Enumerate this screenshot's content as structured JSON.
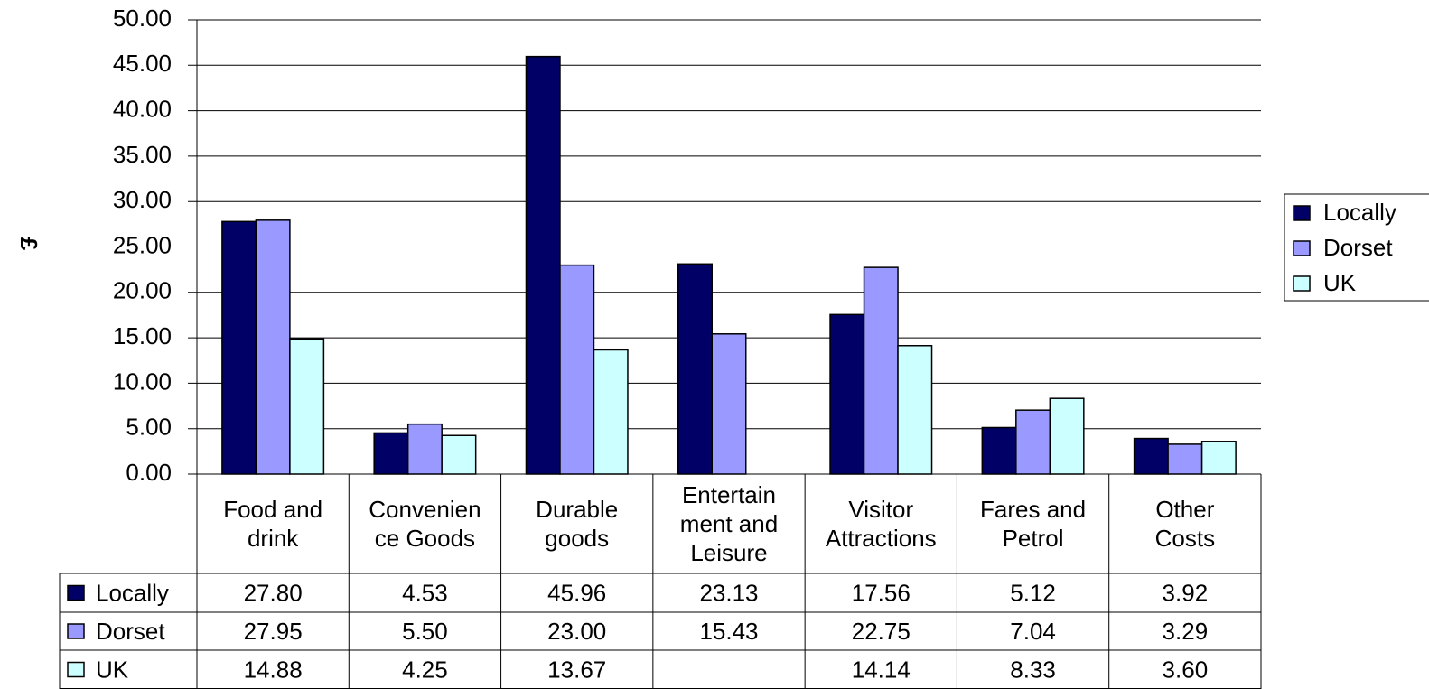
{
  "chart_data": {
    "type": "bar",
    "y_label": "£",
    "categories": [
      "Food and\ndrink",
      "Convenien\nce Goods",
      "Durable\ngoods",
      "Entertain\nment and\nLeisure",
      "Visitor\nAttractions",
      "Fares and\nPetrol",
      "Other\nCosts"
    ],
    "series": [
      {
        "name": "Locally",
        "color": "#000066",
        "values": [
          27.8,
          4.53,
          45.96,
          23.13,
          17.56,
          5.12,
          3.92
        ],
        "value_labels": [
          "27.80",
          "4.53",
          "45.96",
          "23.13",
          "17.56",
          "5.12",
          "3.92"
        ]
      },
      {
        "name": "Dorset",
        "color": "#9999ff",
        "values": [
          27.95,
          5.5,
          23.0,
          15.43,
          22.75,
          7.04,
          3.29
        ],
        "value_labels": [
          "27.95",
          "5.50",
          "23.00",
          "15.43",
          "22.75",
          "7.04",
          "3.29"
        ]
      },
      {
        "name": "UK",
        "color": "#ccffff",
        "values": [
          14.88,
          4.25,
          13.67,
          null,
          14.14,
          8.33,
          3.6
        ],
        "value_labels": [
          "14.88",
          "4.25",
          "13.67",
          null,
          "14.14",
          "8.33",
          "3.60"
        ]
      }
    ],
    "ylim": [
      0,
      50
    ],
    "yticks": [
      {
        "value": 0,
        "label": "0.00"
      },
      {
        "value": 5,
        "label": "5.00"
      },
      {
        "value": 10,
        "label": "10.00"
      },
      {
        "value": 15,
        "label": "15.00"
      },
      {
        "value": 20,
        "label": "20.00"
      },
      {
        "value": 25,
        "label": "25.00"
      },
      {
        "value": 30,
        "label": "30.00"
      },
      {
        "value": 35,
        "label": "35.00"
      },
      {
        "value": 40,
        "label": "40.00"
      },
      {
        "value": 45,
        "label": "45.00"
      },
      {
        "value": 50,
        "label": "50.00"
      }
    ],
    "grid": true,
    "legend": "right"
  }
}
